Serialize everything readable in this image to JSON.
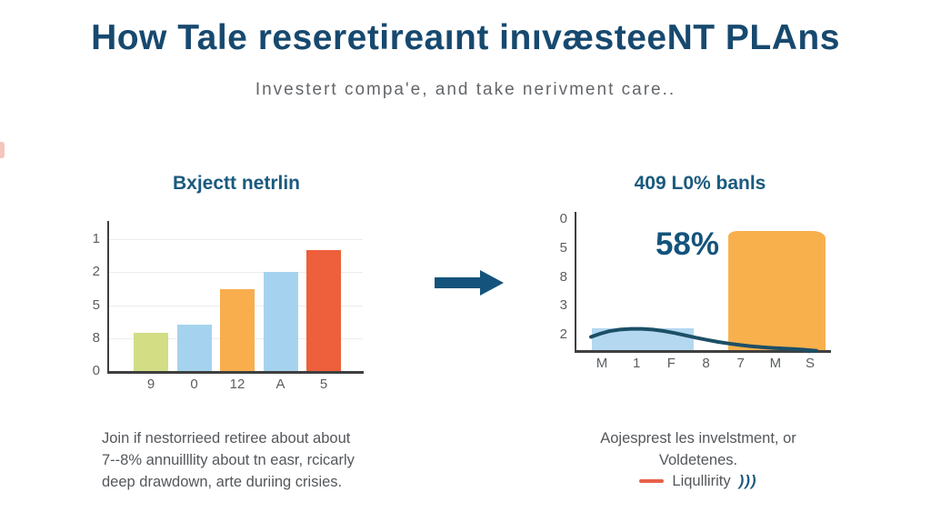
{
  "page": {
    "title": "How Tale reseretireaınt inıvæsteeNT PLAns",
    "subtitle": "Investert compa'e, and take nerivment care.."
  },
  "colors": {
    "title_navy": "#17496f",
    "chart_title_teal": "#1a5a7e",
    "annotation_blue": "#14537c",
    "arrow_blue": "#14537c",
    "axis_dark": "#3f3f3f",
    "grid_gray": "#ececec",
    "tick_gray": "#5a5e62",
    "caption_gray": "#54575b",
    "legend_dash_orange": "#e8624a",
    "edge_mark_pink": "#f5c5be"
  },
  "chart_data": [
    {
      "type": "bar",
      "title": "Bxjectt netrlin",
      "categories": [
        "9",
        "0",
        "12",
        "A",
        "5"
      ],
      "values": [
        0.29,
        0.35,
        0.62,
        0.75,
        0.92
      ],
      "bar_colors": [
        "#d3dd84",
        "#a5d3ef",
        "#f8ae4d",
        "#a5d3ef",
        "#ee5f3b"
      ],
      "y_tick_labels": [
        "1",
        "2",
        "5",
        "8",
        "0"
      ],
      "ylim": [
        0,
        1.14
      ],
      "grid": true,
      "legend_position": "none",
      "caption_lines": [
        "Join if nestorrieed retiree about about",
        "7--8% annuilllity about tn easr, rcicarly",
        "deep drawdown, arte duriing crisies."
      ]
    },
    {
      "type": "bar",
      "title": "409 L0% banls",
      "annotation": "58%",
      "x_tick_labels": [
        "M",
        "1",
        "F",
        "8",
        "7",
        "M",
        "S"
      ],
      "y_tick_labels": [
        "0",
        "5",
        "8",
        "3",
        "2"
      ],
      "grid": false,
      "bars": [
        {
          "name": "low-bar",
          "x": 0.06,
          "width": 0.4,
          "height": 0.158,
          "color": "#b3d8f0",
          "rounded_top": false
        },
        {
          "name": "high-bar",
          "x": 0.597,
          "width": 0.382,
          "height": 0.862,
          "color": "#f8b04d",
          "rounded_top": true
        }
      ],
      "line_series": {
        "name": "Liqullirity",
        "color": "#1d4f66",
        "points": [
          [
            16,
            14.5
          ],
          [
            26,
            18
          ],
          [
            36,
            20.8
          ],
          [
            48,
            22.6
          ],
          [
            60,
            23.4
          ],
          [
            72,
            23.4
          ],
          [
            84,
            22.6
          ],
          [
            96,
            21
          ],
          [
            108,
            18.8
          ],
          [
            120,
            16.2
          ],
          [
            132,
            13.6
          ],
          [
            144,
            11.2
          ],
          [
            156,
            9
          ],
          [
            168,
            7.2
          ],
          [
            180,
            5.6
          ],
          [
            192,
            4.3
          ],
          [
            204,
            3.2
          ],
          [
            216,
            2.4
          ],
          [
            228,
            1.7
          ],
          [
            240,
            1.1
          ],
          [
            250,
            0.5
          ],
          [
            258,
            -0.3
          ],
          [
            264,
            -0.8
          ]
        ],
        "end_dot": [
          256,
          -0.8
        ]
      },
      "caption_lines": [
        "Aojesprest les invelstment, or",
        "Voldetenes."
      ],
      "legend": {
        "marker_color": "#e8624a",
        "label": "Liqullirity",
        "suffix_glyph": ")))"
      }
    }
  ]
}
